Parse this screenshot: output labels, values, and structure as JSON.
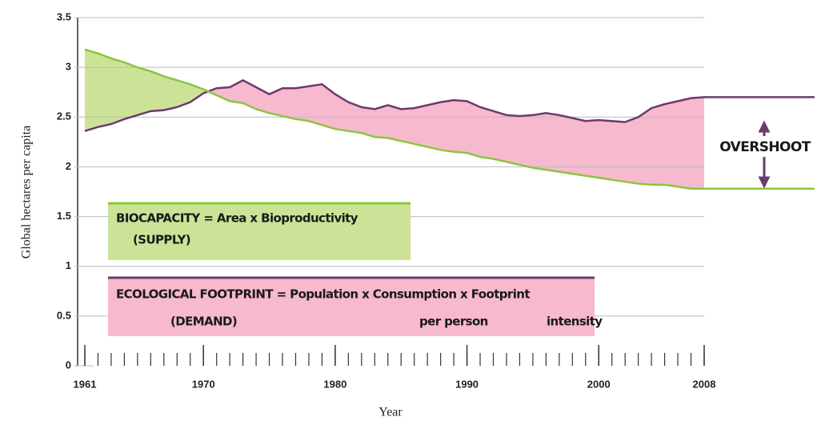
{
  "chart_data": {
    "type": "line",
    "x_label": "Year",
    "y_label": "Global hectares per capita",
    "x": [
      1961,
      1962,
      1963,
      1964,
      1965,
      1966,
      1967,
      1968,
      1969,
      1970,
      1971,
      1972,
      1973,
      1974,
      1975,
      1976,
      1977,
      1978,
      1979,
      1980,
      1981,
      1982,
      1983,
      1984,
      1985,
      1986,
      1987,
      1988,
      1989,
      1990,
      1991,
      1992,
      1993,
      1994,
      1995,
      1996,
      1997,
      1998,
      1999,
      2000,
      2001,
      2002,
      2003,
      2004,
      2005,
      2006,
      2007,
      2008
    ],
    "series": [
      {
        "name": "ECOLOGICAL FOOTPRINT",
        "color": "#6b3a6e",
        "fill": "#f7b9cd",
        "values": [
          2.36,
          2.4,
          2.43,
          2.48,
          2.52,
          2.56,
          2.57,
          2.6,
          2.65,
          2.74,
          2.79,
          2.8,
          2.87,
          2.8,
          2.73,
          2.79,
          2.79,
          2.81,
          2.83,
          2.73,
          2.65,
          2.6,
          2.58,
          2.62,
          2.58,
          2.59,
          2.62,
          2.65,
          2.67,
          2.66,
          2.6,
          2.56,
          2.52,
          2.51,
          2.52,
          2.54,
          2.52,
          2.49,
          2.46,
          2.47,
          2.46,
          2.45,
          2.5,
          2.59,
          2.63,
          2.66,
          2.69,
          2.7
        ]
      },
      {
        "name": "BIOCAPACITY",
        "color": "#8cc63f",
        "fill": "#cce397",
        "values": [
          3.18,
          3.14,
          3.09,
          3.05,
          3.0,
          2.96,
          2.91,
          2.87,
          2.83,
          2.78,
          2.72,
          2.66,
          2.64,
          2.58,
          2.54,
          2.51,
          2.48,
          2.46,
          2.42,
          2.38,
          2.36,
          2.34,
          2.3,
          2.29,
          2.26,
          2.23,
          2.2,
          2.17,
          2.15,
          2.14,
          2.1,
          2.08,
          2.05,
          2.02,
          1.99,
          1.97,
          1.95,
          1.93,
          1.91,
          1.89,
          1.87,
          1.85,
          1.83,
          1.82,
          1.82,
          1.8,
          1.78,
          1.78
        ]
      }
    ],
    "xlim": [
      1961,
      2008
    ],
    "xticks": [
      1961,
      1970,
      1980,
      1990,
      2000,
      2008
    ],
    "ylim": [
      0,
      3.5
    ],
    "yticks": [
      0,
      0.5,
      1,
      1.5,
      2,
      2.5,
      3,
      3.5
    ],
    "grid": true,
    "biocapacity_box": [
      "BIOCAPACITY = Area x Bioproductivity",
      "(SUPPLY)"
    ],
    "footprint_box": [
      "ECOLOGICAL FOOTPRINT = Population x Consumption x Footprint",
      "(DEMAND)",
      "per person",
      "intensity"
    ],
    "overshoot_label": "OVERSHOOT"
  }
}
